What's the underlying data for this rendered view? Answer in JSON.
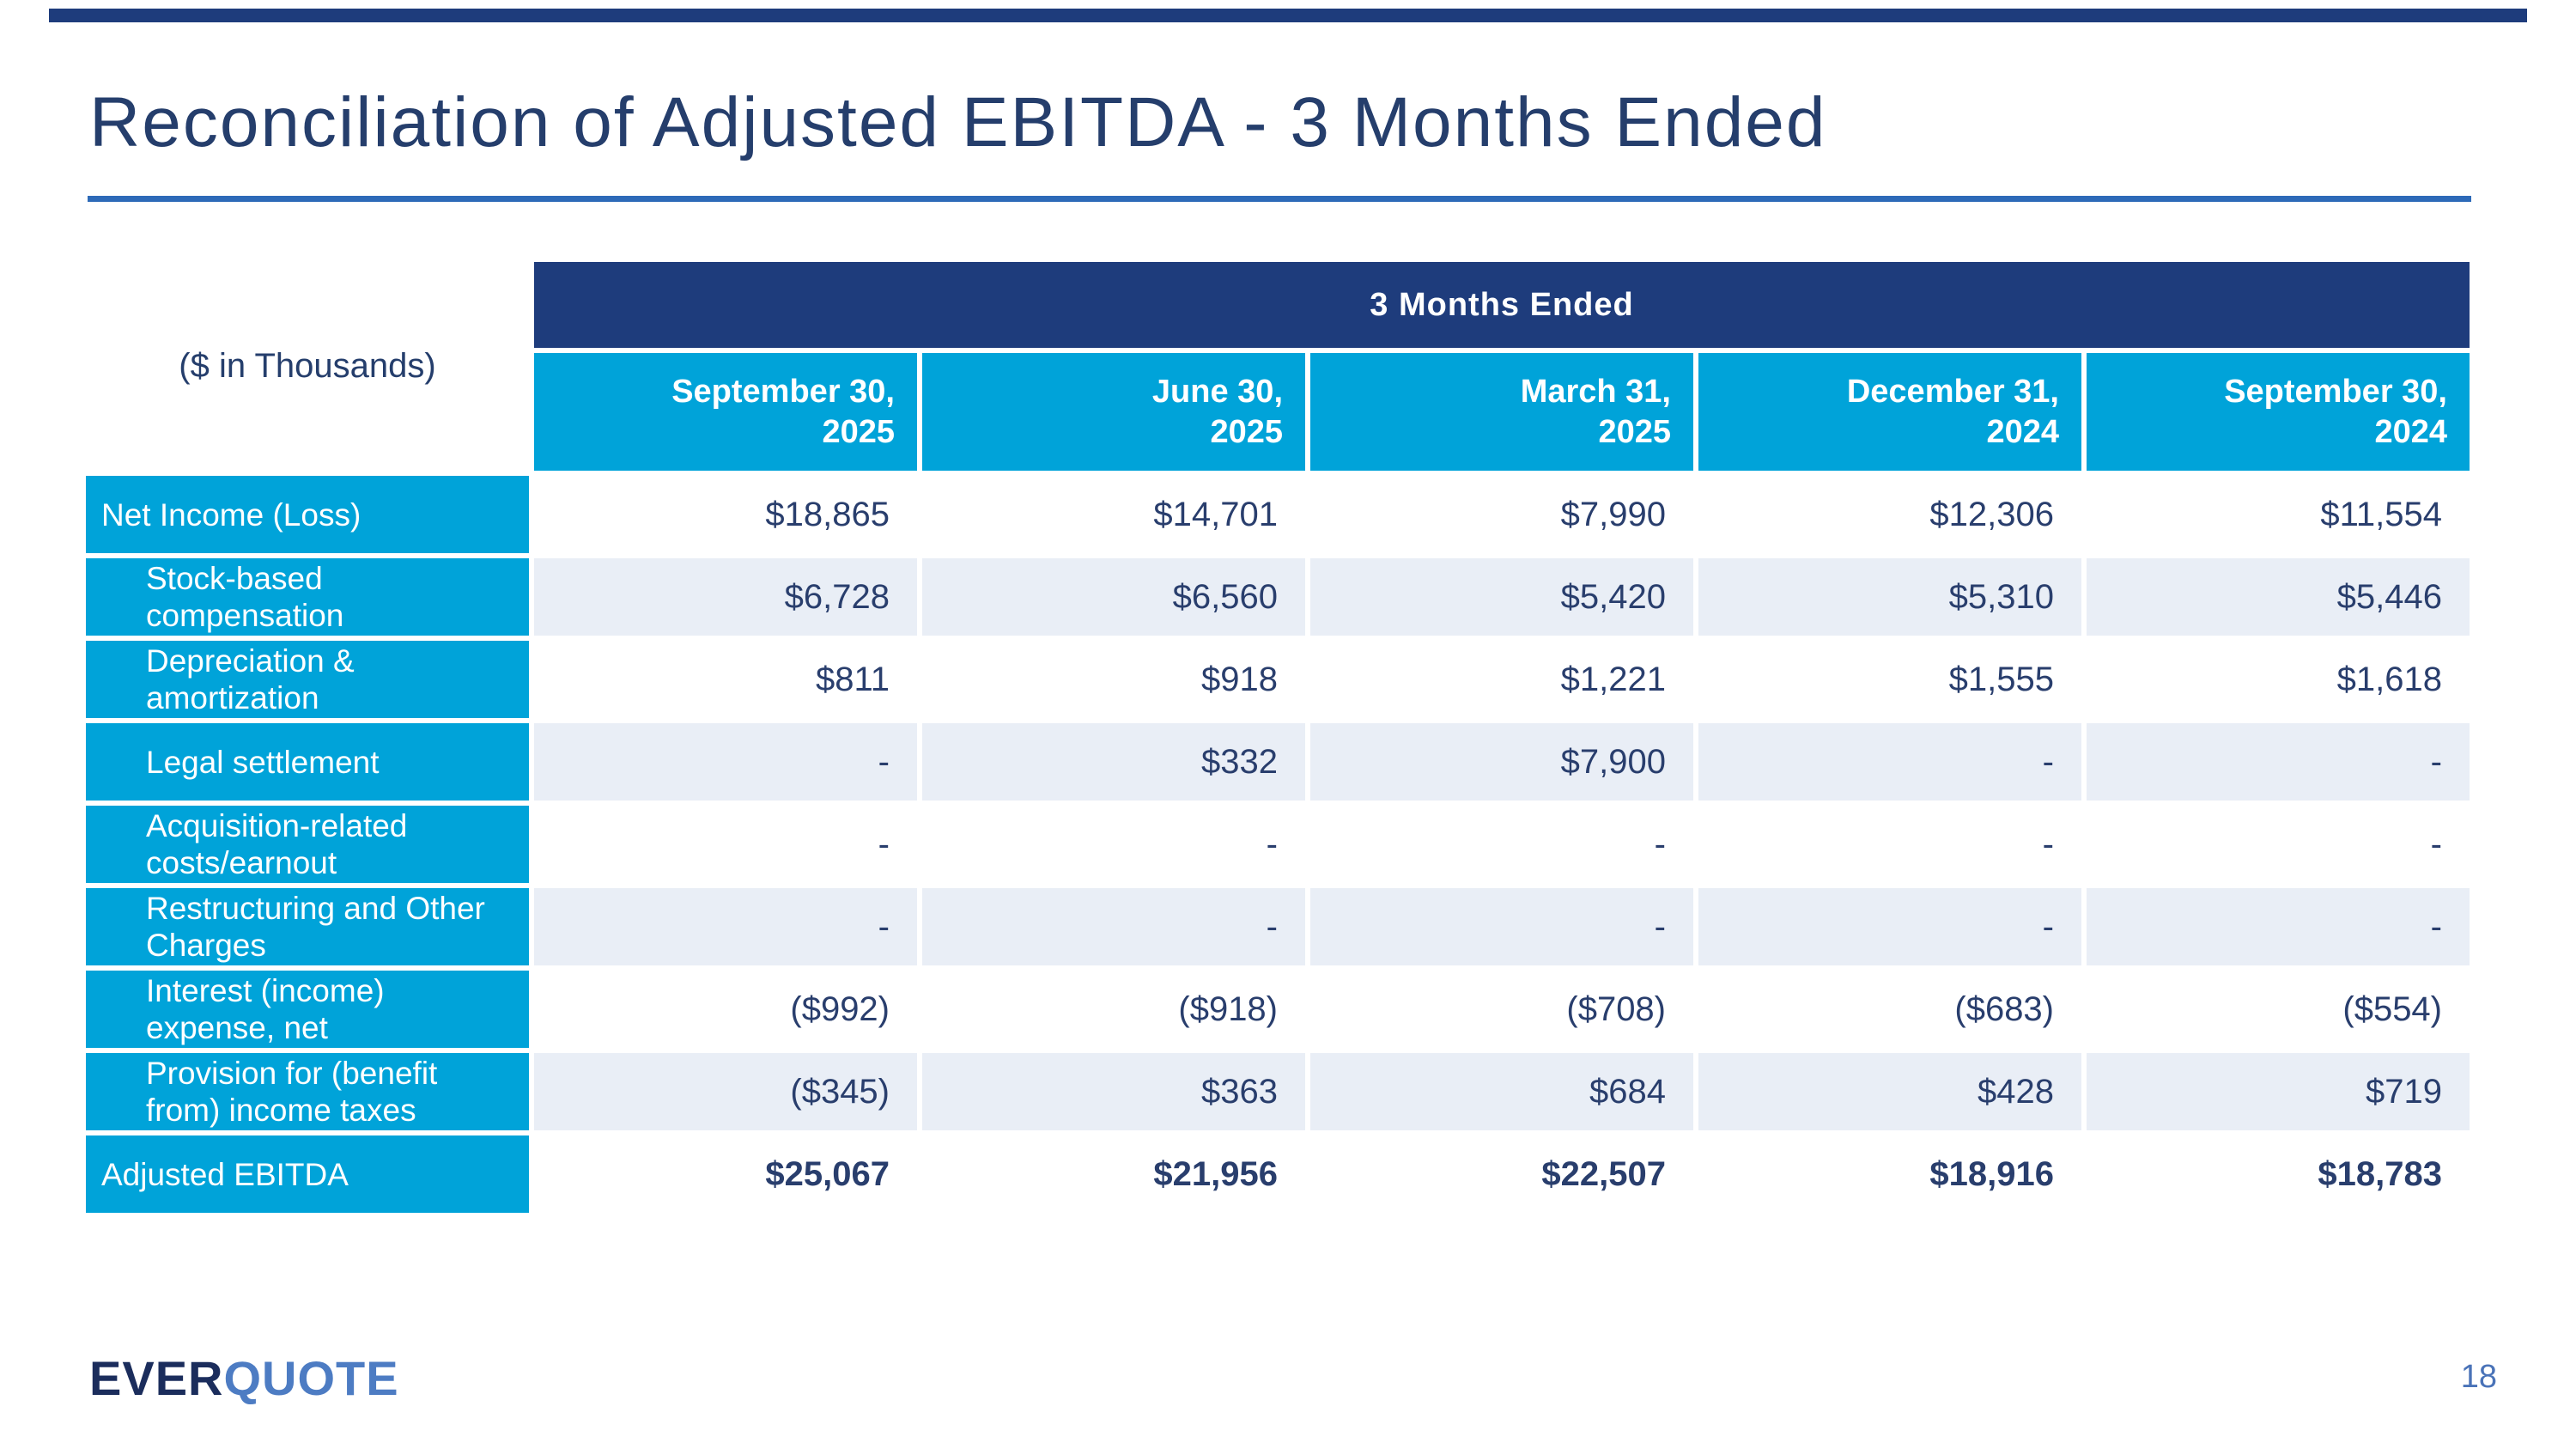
{
  "slide": {
    "title": "Reconciliation of Adjusted EBITDA - 3 Months Ended",
    "page_number": "18"
  },
  "logo": {
    "part1": "EVER",
    "part2": "QUOTE"
  },
  "table": {
    "units_label": "($ in Thousands)",
    "banner": "3 Months Ended",
    "columns": [
      {
        "line1": "September 30,",
        "line2": "2025"
      },
      {
        "line1": "June 30,",
        "line2": "2025"
      },
      {
        "line1": "March 31,",
        "line2": "2025"
      },
      {
        "line1": "December 31,",
        "line2": "2024"
      },
      {
        "line1": "September 30,",
        "line2": "2024"
      }
    ],
    "rows": [
      {
        "label": "Net Income (Loss)",
        "values": [
          "$18,865",
          "$14,701",
          "$7,990",
          "$12,306",
          "$11,554"
        ]
      },
      {
        "label": "Stock-based\ncompensation",
        "values": [
          "$6,728",
          "$6,560",
          "$5,420",
          "$5,310",
          "$5,446"
        ]
      },
      {
        "label": "Depreciation &\namortization",
        "values": [
          "$811",
          "$918",
          "$1,221",
          "$1,555",
          "$1,618"
        ]
      },
      {
        "label": "Legal settlement",
        "values": [
          "-",
          "$332",
          "$7,900",
          "-",
          "-"
        ]
      },
      {
        "label": "Acquisition-related\ncosts/earnout",
        "values": [
          "-",
          "-",
          "-",
          "-",
          "-"
        ]
      },
      {
        "label": "Restructuring and Other\nCharges",
        "values": [
          "-",
          "-",
          "-",
          "-",
          "-"
        ]
      },
      {
        "label": "Interest (income)\nexpense, net",
        "values": [
          "($992)",
          "($918)",
          "($708)",
          "($683)",
          "($554)"
        ]
      },
      {
        "label": "Provision for (benefit\nfrom) income taxes",
        "values": [
          "($345)",
          "$363",
          "$684",
          "$428",
          "$719"
        ]
      },
      {
        "label": "Adjusted EBITDA",
        "values": [
          "$25,067",
          "$21,956",
          "$22,507",
          "$18,916",
          "$18,783"
        ]
      }
    ]
  },
  "colors": {
    "banner_navy": "#1e3c7c",
    "row_label_cyan": "#00a3d9",
    "shaded_row": "#e9eef6",
    "title_navy": "#253e6c",
    "value_text": "#293e6d",
    "underline_blue": "#2d6ab8",
    "logo_ever": "#1b2d5c",
    "logo_quote": "#4d7cc3",
    "page_number_blue": "#4a73b8"
  }
}
